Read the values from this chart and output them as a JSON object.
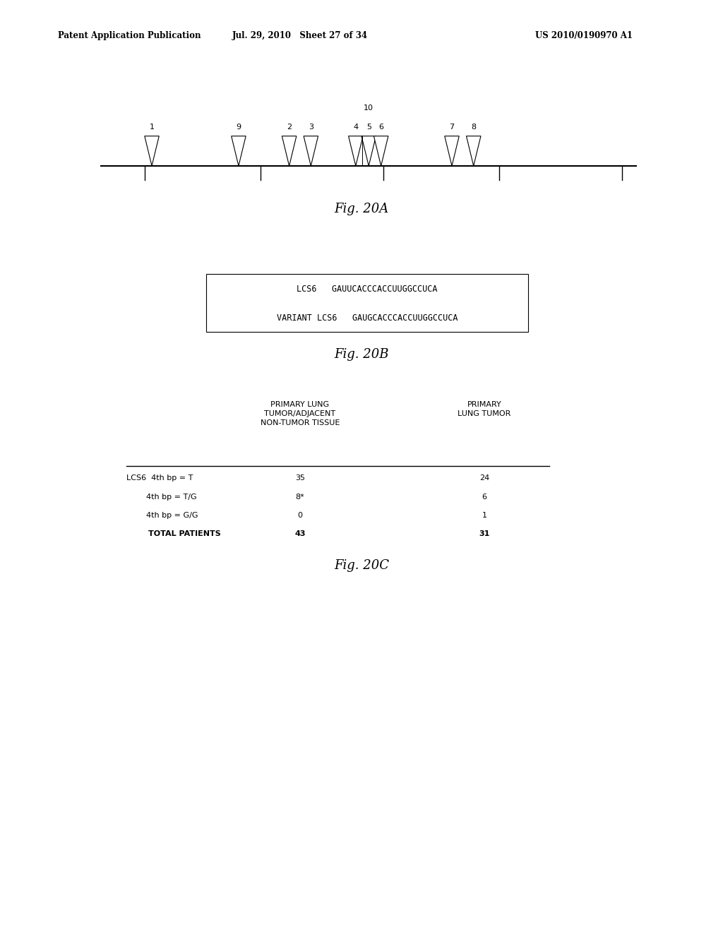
{
  "header_left": "Patent Application Publication",
  "header_mid": "Jul. 29, 2010   Sheet 27 of 34",
  "header_right": "US 2010/0190970 A1",
  "fig20a_label": "Fig. 20A",
  "fig20b_label": "Fig. 20B",
  "fig20c_label": "Fig. 20C",
  "bg_color": "#ffffff",
  "text_color": "#000000",
  "line_color": "#000000",
  "lcs6_seq1": "LCS6   GAUUCACCCACCUUGGCCUCA",
  "lcs6_seq2": "VARIANT LCS6   GAUGCACCCACCUUGGCCUCA",
  "table_col1_header": "PRIMARY LUNG\nTUMOR/ADJACENT\nNON-TUMOR TISSUE",
  "table_col2_header": "PRIMARY\nLUNG TUMOR",
  "row_labels": [
    "LCS6  4th bp = T",
    "        4th bp = T/G",
    "        4th bp = G/G",
    "        TOTAL PATIENTS"
  ],
  "row_bold": [
    false,
    false,
    false,
    true
  ],
  "row_col1": [
    "35",
    "8*",
    "0",
    "43"
  ],
  "row_col2": [
    "24",
    "6",
    "1",
    "31"
  ]
}
